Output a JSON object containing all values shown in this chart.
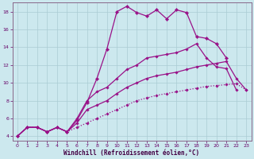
{
  "xlabel": "Windchill (Refroidissement éolien,°C)",
  "background_color": "#cce8ee",
  "grid_color": "#aaccd4",
  "line_color": "#991188",
  "xlim": [
    -0.5,
    23.5
  ],
  "ylim": [
    3.5,
    19.0
  ],
  "xticks": [
    0,
    1,
    2,
    3,
    4,
    5,
    6,
    7,
    8,
    9,
    10,
    11,
    12,
    13,
    14,
    15,
    16,
    17,
    18,
    19,
    20,
    21,
    22,
    23
  ],
  "yticks": [
    4,
    6,
    8,
    10,
    12,
    14,
    16,
    18
  ],
  "series": [
    {
      "x": [
        0,
        1,
        2,
        3,
        4,
        5,
        6,
        7,
        8,
        9,
        10,
        11,
        12,
        13,
        14,
        15,
        16,
        17,
        18,
        19,
        20,
        21,
        22,
        23
      ],
      "y": [
        4,
        5,
        5,
        4.5,
        5,
        4.5,
        5.0,
        5.5,
        6.0,
        6.5,
        7.0,
        7.5,
        8.0,
        8.3,
        8.6,
        8.8,
        9.0,
        9.2,
        9.4,
        9.6,
        9.7,
        9.8,
        9.9,
        9.2
      ],
      "linestyle": ":",
      "marker": "D",
      "markersize": 1.8,
      "linewidth": 0.9
    },
    {
      "x": [
        0,
        1,
        2,
        3,
        4,
        5,
        6,
        7,
        8,
        9,
        10,
        11,
        12,
        13,
        14,
        15,
        16,
        17,
        18,
        19,
        20,
        21,
        22,
        23
      ],
      "y": [
        4,
        5,
        5,
        4.5,
        5,
        4.5,
        5.5,
        7.0,
        7.5,
        8.0,
        8.8,
        9.5,
        10.0,
        10.5,
        10.8,
        11.0,
        11.2,
        11.5,
        11.8,
        12.0,
        12.2,
        12.4,
        10.5,
        9.2
      ],
      "linestyle": "-",
      "marker": "D",
      "markersize": 1.8,
      "linewidth": 0.9
    },
    {
      "x": [
        0,
        1,
        2,
        3,
        4,
        5,
        6,
        7,
        8,
        9,
        10,
        11,
        12,
        13,
        14,
        15,
        16,
        17,
        18,
        19,
        20,
        21,
        22
      ],
      "y": [
        4,
        5,
        5,
        4.5,
        5,
        4.5,
        6.0,
        8.0,
        9.0,
        9.5,
        10.5,
        11.5,
        12.0,
        12.8,
        13.0,
        13.2,
        13.4,
        13.8,
        14.4,
        12.8,
        11.8,
        11.6,
        9.2
      ],
      "linestyle": "-",
      "marker": "D",
      "markersize": 1.8,
      "linewidth": 0.9
    },
    {
      "x": [
        0,
        1,
        2,
        3,
        4,
        5,
        6,
        7,
        8,
        9,
        10,
        11,
        12,
        13,
        14,
        15,
        16,
        17,
        18,
        19,
        20,
        21
      ],
      "y": [
        4,
        5,
        5,
        4.5,
        5,
        4.5,
        5.8,
        7.8,
        10.5,
        13.8,
        18.0,
        18.6,
        17.9,
        17.5,
        18.2,
        17.2,
        18.2,
        17.9,
        15.2,
        15.0,
        14.4,
        12.8
      ],
      "linestyle": "-",
      "marker": "D",
      "markersize": 2.2,
      "linewidth": 0.9
    }
  ]
}
